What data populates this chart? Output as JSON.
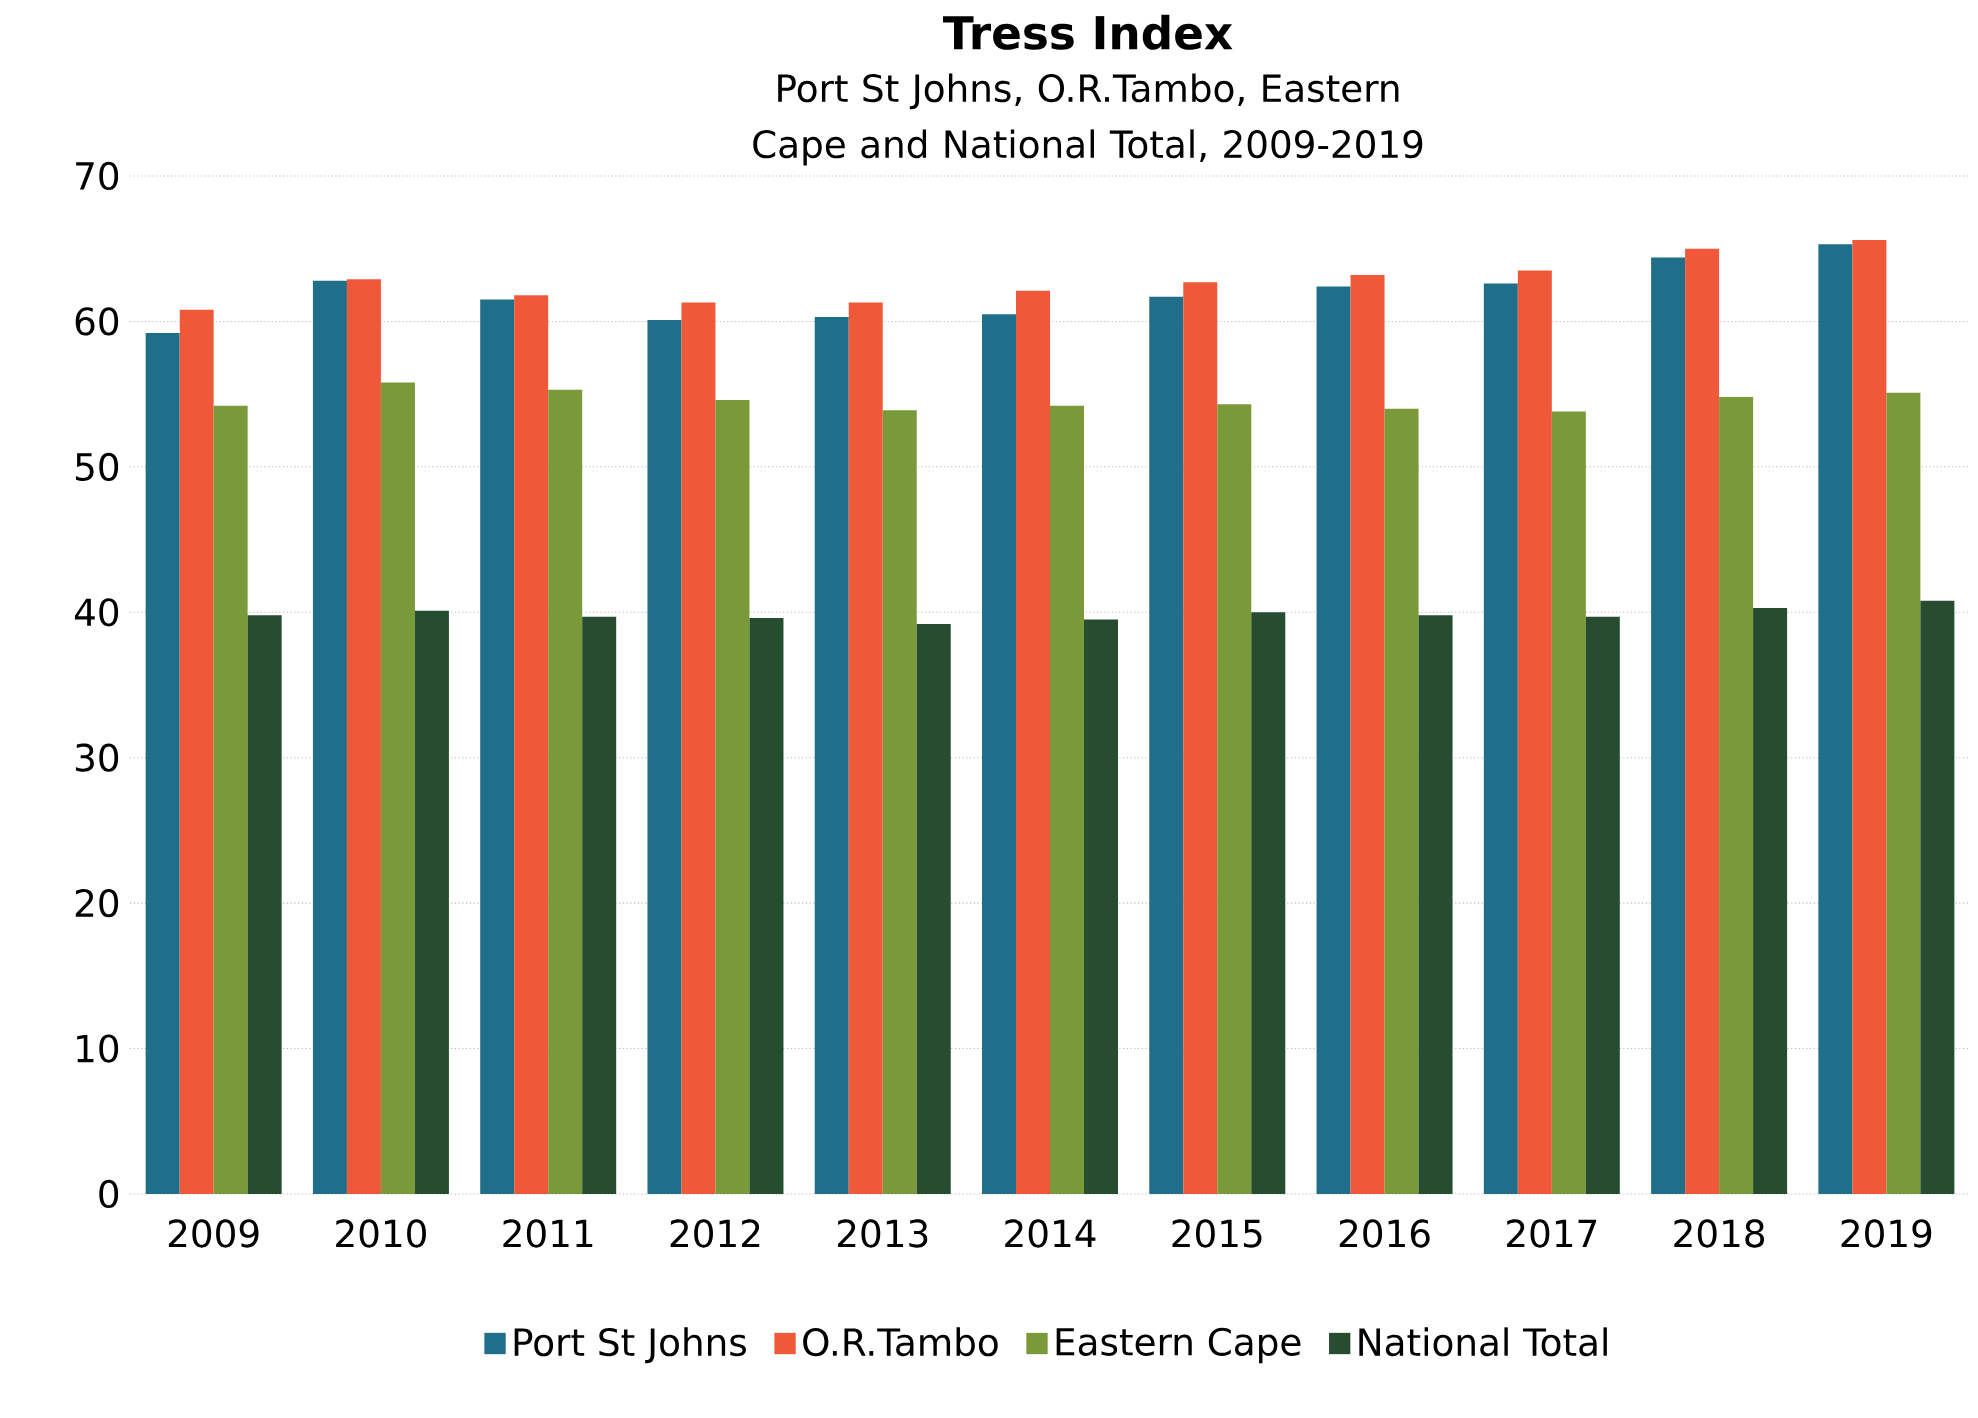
{
  "chart_data": {
    "type": "bar",
    "title": "Tress Index",
    "subtitle": "Port St Johns, O.R.Tambo, Eastern Cape and National Total, 2009-2019",
    "categories": [
      "2009",
      "2010",
      "2011",
      "2012",
      "2013",
      "2014",
      "2015",
      "2016",
      "2017",
      "2018",
      "2019"
    ],
    "series": [
      {
        "name": "Port St Johns",
        "color": "#1f6f8b",
        "values": [
          59.2,
          62.8,
          61.5,
          60.1,
          60.3,
          60.5,
          61.7,
          62.4,
          62.6,
          64.4,
          65.3
        ]
      },
      {
        "name": "O.R.Tambo",
        "color": "#f0583a",
        "values": [
          60.8,
          62.9,
          61.8,
          61.3,
          61.3,
          62.1,
          62.7,
          63.2,
          63.5,
          65.0,
          65.6
        ]
      },
      {
        "name": "Eastern Cape",
        "color": "#7a9a3a",
        "values": [
          54.2,
          55.8,
          55.3,
          54.6,
          53.9,
          54.2,
          54.3,
          54.0,
          53.8,
          54.8,
          55.1
        ]
      },
      {
        "name": "National Total",
        "color": "#264d30",
        "values": [
          39.8,
          40.1,
          39.7,
          39.6,
          39.2,
          39.5,
          40.0,
          39.8,
          39.7,
          40.3,
          40.8
        ]
      }
    ],
    "ylim": [
      0,
      70
    ],
    "yticks": [
      0,
      10,
      20,
      30,
      40,
      50,
      60,
      70
    ],
    "grid": "y",
    "legend": "bottom"
  }
}
